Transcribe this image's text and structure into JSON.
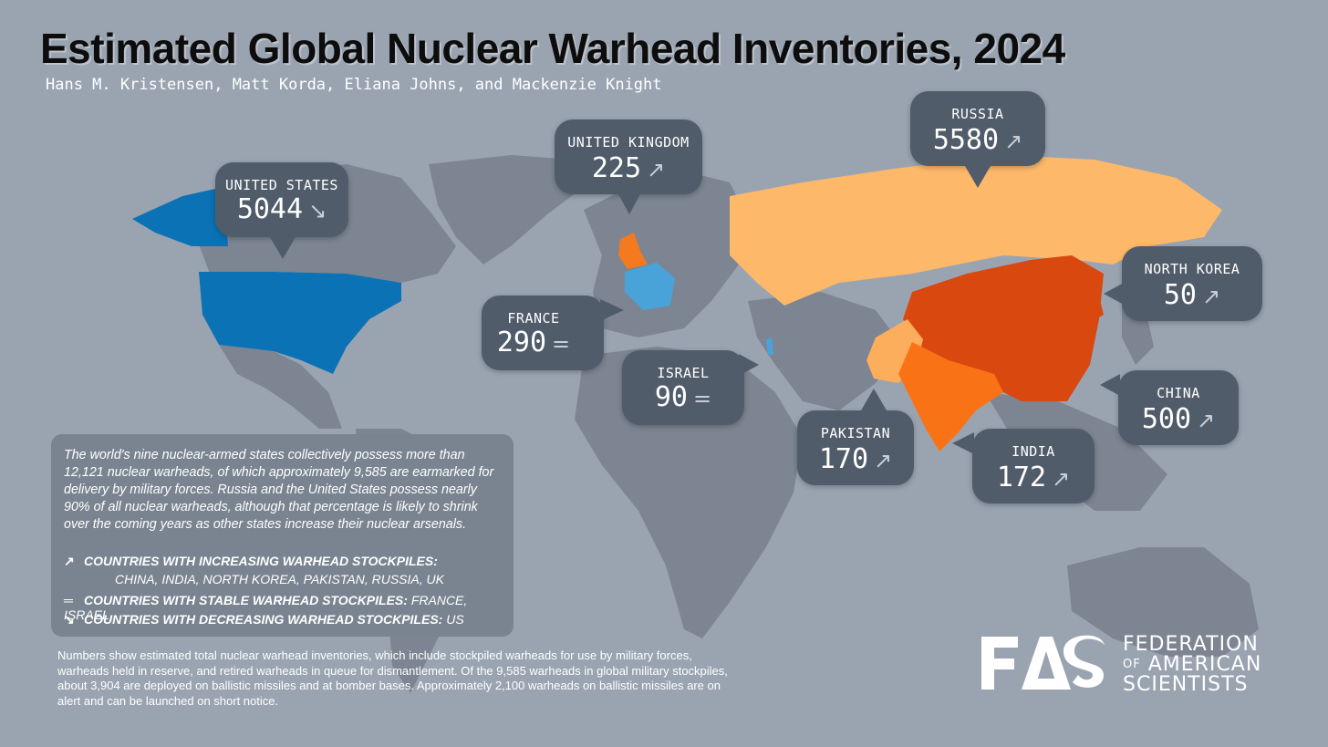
{
  "title": "Estimated Global Nuclear Warhead Inventories, 2024",
  "authors": "Hans M. Kristensen, Matt Korda, Eliana Johns, and Mackenzie Knight",
  "colors": {
    "background": "#9aa4b1",
    "land": "#7c8591",
    "united_states": "#0b72b5",
    "france": "#4aa3d8",
    "russia": "#fdb86a",
    "united_kingdom": "#f47a1f",
    "china": "#d9480f",
    "india": "#f97316",
    "pakistan": "#fdae5c",
    "north_korea": "#d9480f",
    "callout": "#515c6a"
  },
  "countries": [
    {
      "key": "united_states",
      "name": "UNITED STATES",
      "warheads": "5044",
      "trend": "decreasing",
      "trend_icon": "↘"
    },
    {
      "key": "united_kingdom",
      "name": "UNITED KINGDOM",
      "warheads": "225",
      "trend": "increasing",
      "trend_icon": "↗"
    },
    {
      "key": "russia",
      "name": "RUSSIA",
      "warheads": "5580",
      "trend": "increasing",
      "trend_icon": "↗"
    },
    {
      "key": "north_korea",
      "name": "NORTH KOREA",
      "warheads": "50",
      "trend": "increasing",
      "trend_icon": "↗"
    },
    {
      "key": "france",
      "name": "FRANCE",
      "warheads": "290",
      "trend": "stable",
      "trend_icon": "="
    },
    {
      "key": "israel",
      "name": "ISRAEL",
      "warheads": "90",
      "trend": "stable",
      "trend_icon": "="
    },
    {
      "key": "china",
      "name": "CHINA",
      "warheads": "500",
      "trend": "increasing",
      "trend_icon": "↗"
    },
    {
      "key": "pakistan",
      "name": "PAKISTAN",
      "warheads": "170",
      "trend": "increasing",
      "trend_icon": "↗"
    },
    {
      "key": "india",
      "name": "INDIA",
      "warheads": "172",
      "trend": "increasing",
      "trend_icon": "↗"
    }
  ],
  "info": {
    "paragraph": "The world's nine nuclear-armed states collectively possess more than 12,121 nuclear warheads, of which approximately 9,585 are earmarked for delivery by military forces. Russia and the United States possess nearly 90% of all nuclear warheads, although that percentage is likely to shrink over the coming years as other states increase their nuclear arsenals.",
    "legend": [
      {
        "icon": "↗",
        "label": "Countries with increasing warhead stockpiles:",
        "countries": "China, India, North Korea, Pakistan, Russia, UK"
      },
      {
        "icon": "═",
        "label": "Countries with stable warhead stockpiles:",
        "countries": "France, Israel"
      },
      {
        "icon": "↘",
        "label": "Countries with decreasing warhead stockpiles:",
        "countries": "US"
      }
    ]
  },
  "footnote": "Numbers show estimated total nuclear warhead inventories, which include stockpiled warheads for use by military forces, warheads held in reserve, and retired warheads in queue for dismantlement. Of the 9,585 warheads in global military stockpiles, about 3,904 are deployed on ballistic missiles and at bomber bases. Approximately 2,100 warheads on ballistic missiles are on alert and can be launched on short notice.",
  "logo": {
    "mark": "FAS",
    "line1": "FEDERATION",
    "line2_small": "OF",
    "line2": "AMERICAN",
    "line3": "SCIENTISTS"
  }
}
